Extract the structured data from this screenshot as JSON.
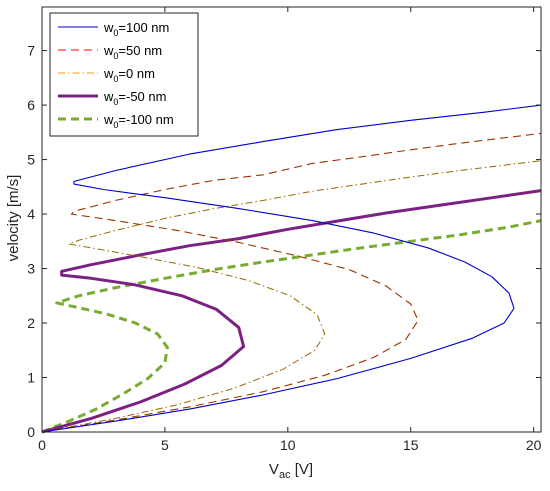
{
  "chart_data": {
    "type": "line",
    "xlabel": {
      "main": "V",
      "sub": "ac",
      "rest": " [V]"
    },
    "ylabel": "velocity [m/s]",
    "xlim": [
      0,
      20.3
    ],
    "ylim": [
      0,
      7.8
    ],
    "xticks": [
      0,
      5,
      10,
      15,
      20
    ],
    "yticks": [
      0,
      1,
      2,
      3,
      4,
      5,
      6,
      7
    ],
    "legend_position": "top-left",
    "series": [
      {
        "name_main": "w",
        "name_sub": "0",
        "name_rest": "=100 nm",
        "color": "#0000cc",
        "style": "solid",
        "width": 1.1,
        "points": [
          [
            0,
            0
          ],
          [
            3,
            0.2
          ],
          [
            6,
            0.42
          ],
          [
            9,
            0.68
          ],
          [
            12,
            0.98
          ],
          [
            15,
            1.35
          ],
          [
            17.5,
            1.72
          ],
          [
            18.8,
            2.0
          ],
          [
            19.2,
            2.27
          ],
          [
            19.0,
            2.55
          ],
          [
            18.3,
            2.85
          ],
          [
            17.2,
            3.12
          ],
          [
            15.7,
            3.38
          ],
          [
            13.5,
            3.65
          ],
          [
            11,
            3.88
          ],
          [
            8,
            4.1
          ],
          [
            5,
            4.3
          ],
          [
            2.5,
            4.45
          ],
          [
            1.3,
            4.55
          ],
          [
            1.3,
            4.6
          ],
          [
            3,
            4.8
          ],
          [
            6,
            5.1
          ],
          [
            9,
            5.33
          ],
          [
            12,
            5.55
          ],
          [
            15,
            5.72
          ],
          [
            18,
            5.87
          ],
          [
            20.3,
            6.0
          ]
        ]
      },
      {
        "name_main": "w",
        "name_sub": "0",
        "name_rest": "=50 nm",
        "color": "#ff0000",
        "color2": "#993300",
        "style": "dashed",
        "width": 1.1,
        "points": [
          [
            0,
            0
          ],
          [
            3,
            0.22
          ],
          [
            6,
            0.46
          ],
          [
            9,
            0.74
          ],
          [
            11.5,
            1.04
          ],
          [
            13.5,
            1.37
          ],
          [
            14.8,
            1.7
          ],
          [
            15.3,
            2.05
          ],
          [
            15.0,
            2.35
          ],
          [
            14.0,
            2.68
          ],
          [
            12.5,
            2.98
          ],
          [
            10.5,
            3.22
          ],
          [
            8,
            3.48
          ],
          [
            5.5,
            3.7
          ],
          [
            3,
            3.88
          ],
          [
            1.2,
            4.0
          ],
          [
            1.3,
            4.05
          ],
          [
            3,
            4.25
          ],
          [
            5,
            4.45
          ],
          [
            7,
            4.62
          ],
          [
            9,
            4.72
          ],
          [
            11,
            4.93
          ],
          [
            13,
            5.05
          ],
          [
            15,
            5.18
          ],
          [
            17,
            5.3
          ],
          [
            20.3,
            5.48
          ]
        ]
      },
      {
        "name_main": "w",
        "name_sub": "0",
        "name_rest": "=0 nm",
        "color": "#ff9900",
        "color2": "#996600",
        "style": "dashdot",
        "width": 1.0,
        "points": [
          [
            0,
            0
          ],
          [
            3,
            0.25
          ],
          [
            5.5,
            0.5
          ],
          [
            7.8,
            0.8
          ],
          [
            9.8,
            1.15
          ],
          [
            11.1,
            1.5
          ],
          [
            11.5,
            1.8
          ],
          [
            11.2,
            2.15
          ],
          [
            10.1,
            2.5
          ],
          [
            8.4,
            2.78
          ],
          [
            6.3,
            3.02
          ],
          [
            4,
            3.22
          ],
          [
            2,
            3.38
          ],
          [
            1.1,
            3.45
          ],
          [
            1.5,
            3.52
          ],
          [
            3,
            3.7
          ],
          [
            5,
            3.92
          ],
          [
            7,
            4.1
          ],
          [
            9,
            4.25
          ],
          [
            11,
            4.42
          ],
          [
            13,
            4.55
          ],
          [
            15,
            4.68
          ],
          [
            17,
            4.8
          ],
          [
            20.3,
            4.98
          ]
        ]
      },
      {
        "name_main": "w",
        "name_sub": "0",
        "name_rest": "=-50 nm",
        "color": "#7b2182",
        "style": "solid",
        "width": 3.0,
        "points": [
          [
            0,
            0
          ],
          [
            2,
            0.25
          ],
          [
            4,
            0.55
          ],
          [
            5.8,
            0.88
          ],
          [
            7.3,
            1.22
          ],
          [
            8.2,
            1.57
          ],
          [
            8.0,
            1.92
          ],
          [
            7.1,
            2.25
          ],
          [
            5.7,
            2.5
          ],
          [
            3.8,
            2.7
          ],
          [
            2,
            2.82
          ],
          [
            0.8,
            2.88
          ],
          [
            0.8,
            2.95
          ],
          [
            2,
            3.07
          ],
          [
            4,
            3.25
          ],
          [
            6,
            3.42
          ],
          [
            8,
            3.55
          ],
          [
            10,
            3.72
          ],
          [
            12,
            3.87
          ],
          [
            14,
            4.02
          ],
          [
            16,
            4.15
          ],
          [
            18,
            4.28
          ],
          [
            20.3,
            4.43
          ]
        ]
      },
      {
        "name_main": "w",
        "name_sub": "0",
        "name_rest": "=-100 nm",
        "color": "#77ac30",
        "style": "dashed",
        "width": 3.0,
        "points": [
          [
            0,
            0
          ],
          [
            1,
            0.18
          ],
          [
            2.2,
            0.42
          ],
          [
            3.3,
            0.7
          ],
          [
            4.3,
            0.98
          ],
          [
            5.0,
            1.27
          ],
          [
            5.1,
            1.55
          ],
          [
            4.7,
            1.8
          ],
          [
            3.8,
            2.0
          ],
          [
            2.6,
            2.17
          ],
          [
            1.3,
            2.3
          ],
          [
            0.6,
            2.37
          ],
          [
            1.5,
            2.5
          ],
          [
            3,
            2.65
          ],
          [
            5,
            2.82
          ],
          [
            7,
            2.98
          ],
          [
            9,
            3.12
          ],
          [
            11,
            3.25
          ],
          [
            13,
            3.38
          ],
          [
            15,
            3.5
          ],
          [
            17,
            3.62
          ],
          [
            19,
            3.76
          ],
          [
            20.3,
            3.88
          ]
        ]
      }
    ]
  }
}
